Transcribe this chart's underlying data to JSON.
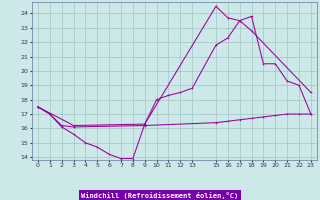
{
  "xlabel": "Windchill (Refroidissement éolien,°C)",
  "xlim": [
    -0.5,
    23.5
  ],
  "ylim": [
    13.8,
    24.8
  ],
  "yticks": [
    14,
    15,
    16,
    17,
    18,
    19,
    20,
    21,
    22,
    23,
    24
  ],
  "xticks": [
    0,
    1,
    2,
    3,
    4,
    5,
    6,
    7,
    8,
    9,
    10,
    11,
    12,
    13,
    15,
    16,
    17,
    18,
    19,
    20,
    21,
    22,
    23
  ],
  "bg_color": "#cce8e8",
  "line_color": "#990099",
  "grid_color": "#99bbbb",
  "xlabel_bg": "#7700aa",
  "line1_x": [
    0,
    1,
    2,
    3,
    4,
    5,
    6,
    7,
    8,
    9,
    15,
    16,
    17,
    18,
    23
  ],
  "line1_y": [
    17.5,
    17.0,
    16.1,
    15.6,
    15.0,
    14.7,
    14.2,
    13.9,
    13.9,
    16.3,
    24.5,
    23.7,
    23.5,
    22.8,
    18.5
  ],
  "line2_x": [
    0,
    3,
    9,
    10,
    11,
    12,
    13,
    15,
    16,
    17,
    18,
    19,
    20,
    21,
    22,
    23
  ],
  "line2_y": [
    17.5,
    16.2,
    16.3,
    18.0,
    18.3,
    18.5,
    18.8,
    21.8,
    22.3,
    23.5,
    23.8,
    20.5,
    20.5,
    19.3,
    19.0,
    17.0
  ],
  "line3_x": [
    0,
    1,
    2,
    3,
    9,
    15,
    16,
    17,
    18,
    19,
    20,
    21,
    22,
    23
  ],
  "line3_y": [
    17.5,
    17.0,
    16.2,
    16.1,
    16.2,
    16.4,
    16.5,
    16.6,
    16.7,
    16.8,
    16.9,
    17.0,
    17.0,
    17.0
  ]
}
